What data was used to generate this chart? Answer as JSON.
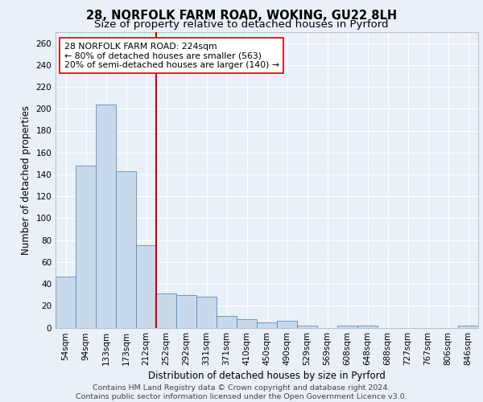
{
  "title_line1": "28, NORFOLK FARM ROAD, WOKING, GU22 8LH",
  "title_line2": "Size of property relative to detached houses in Pyrford",
  "xlabel": "Distribution of detached houses by size in Pyrford",
  "ylabel": "Number of detached properties",
  "categories": [
    "54sqm",
    "94sqm",
    "133sqm",
    "173sqm",
    "212sqm",
    "252sqm",
    "292sqm",
    "331sqm",
    "371sqm",
    "410sqm",
    "450sqm",
    "490sqm",
    "529sqm",
    "569sqm",
    "608sqm",
    "648sqm",
    "688sqm",
    "727sqm",
    "767sqm",
    "806sqm",
    "846sqm"
  ],
  "values": [
    47,
    148,
    204,
    143,
    75,
    31,
    30,
    28,
    11,
    8,
    5,
    6,
    2,
    0,
    2,
    2,
    0,
    0,
    0,
    0,
    2
  ],
  "bar_color": "#c9d9ec",
  "bar_edge_color": "#5b8db8",
  "vline_x": 4.5,
  "vline_color": "#cc0000",
  "annotation_text": "28 NORFOLK FARM ROAD: 224sqm\n← 80% of detached houses are smaller (563)\n20% of semi-detached houses are larger (140) →",
  "annotation_box_color": "#ffffff",
  "annotation_box_edge": "#cc0000",
  "ylim": [
    0,
    270
  ],
  "yticks": [
    0,
    20,
    40,
    60,
    80,
    100,
    120,
    140,
    160,
    180,
    200,
    220,
    240,
    260
  ],
  "footer_text": "Contains HM Land Registry data © Crown copyright and database right 2024.\nContains public sector information licensed under the Open Government Licence v3.0.",
  "background_color": "#eaf0f8",
  "grid_color": "#ffffff",
  "title_fontsize": 10.5,
  "subtitle_fontsize": 9.5,
  "axis_label_fontsize": 8.5,
  "tick_fontsize": 7.5,
  "annotation_fontsize": 7.8,
  "footer_fontsize": 6.8
}
